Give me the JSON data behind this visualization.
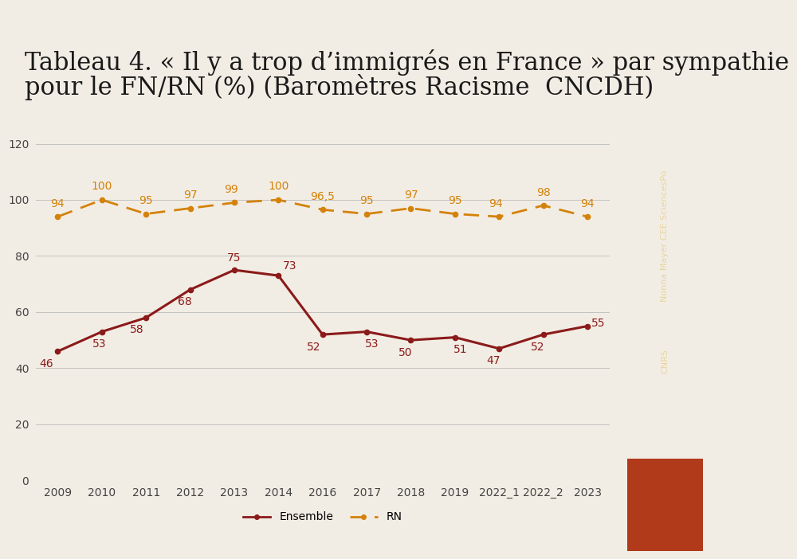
{
  "title_line1": "Tableau 4. « Il y a trop d’immigrés en France » par sympathie",
  "title_line2": "pour le FN/RN (%) (Baromètres Racisme  CNCDH)",
  "x_labels": [
    "2009",
    "2010",
    "2011",
    "2012",
    "2013",
    "2014",
    "2016",
    "2017",
    "2018",
    "2019",
    "2022_1",
    "2022_2",
    "2023"
  ],
  "ensemble_values": [
    46,
    53,
    58,
    68,
    75,
    73,
    52,
    53,
    50,
    51,
    47,
    52,
    55
  ],
  "rn_values": [
    94,
    100,
    95,
    97,
    99,
    100,
    96.5,
    95,
    97,
    95,
    94,
    98,
    94
  ],
  "ensemble_color": "#8B1A1A",
  "rn_color": "#D4820A",
  "background_color": "#F2EDE4",
  "sidebar_color_top": "#4A1005",
  "sidebar_color_bottom": "#B03A1A",
  "sidebar_text_line1": "Nonna Mayer CEE SciencesPo",
  "sidebar_text_line2": "CNRS",
  "ylim": [
    0,
    120
  ],
  "yticks": [
    0,
    20,
    40,
    60,
    80,
    100,
    120
  ],
  "legend_ensemble": "Ensemble",
  "legend_rn": "RN",
  "title_fontsize": 22,
  "label_fontsize": 10,
  "rn_labels": [
    "94",
    "100",
    "95",
    "97",
    "99",
    "100",
    "96,5",
    "95",
    "97",
    "95",
    "94",
    "98",
    "94"
  ],
  "ens_labels": [
    "46",
    "53",
    "58",
    "68",
    "75",
    "73",
    "52",
    "53",
    "50",
    "51",
    "47",
    "52",
    "55"
  ]
}
